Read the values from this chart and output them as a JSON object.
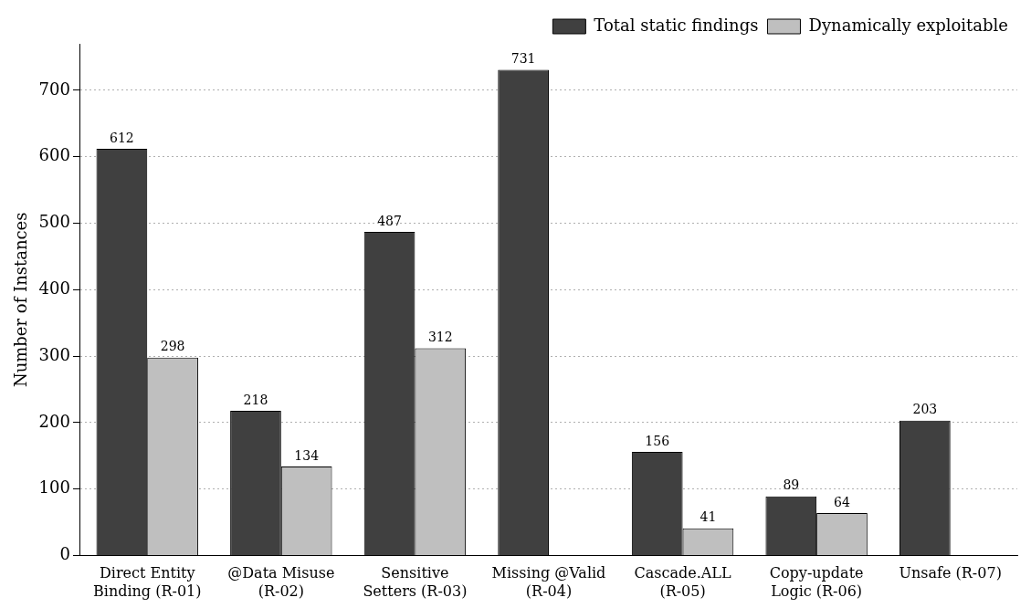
{
  "chart_data": {
    "type": "bar",
    "ylabel": "Number of Instances",
    "categories": [
      "Direct Entity Binding (R-01)",
      "@Data Misuse (R-02)",
      "Sensitive Setters (R-03)",
      "Missing @Valid (R-04)",
      "Cascade.ALL (R-05)",
      "Copy-update Logic (R-06)",
      "Unsafe (R-07)"
    ],
    "series": [
      {
        "name": "Total static findings",
        "color": "#404040",
        "values": [
          612,
          218,
          487,
          731,
          156,
          89,
          203
        ]
      },
      {
        "name": "Dynamically exploitable",
        "color": "#bfbfbf",
        "values": [
          298,
          134,
          312,
          null,
          41,
          64,
          null
        ]
      }
    ],
    "ylim": [
      0,
      770
    ],
    "yticks": [
      0,
      100,
      200,
      300,
      400,
      500,
      600,
      700
    ],
    "grid": "y",
    "legend": "top right",
    "data_labels": true
  }
}
